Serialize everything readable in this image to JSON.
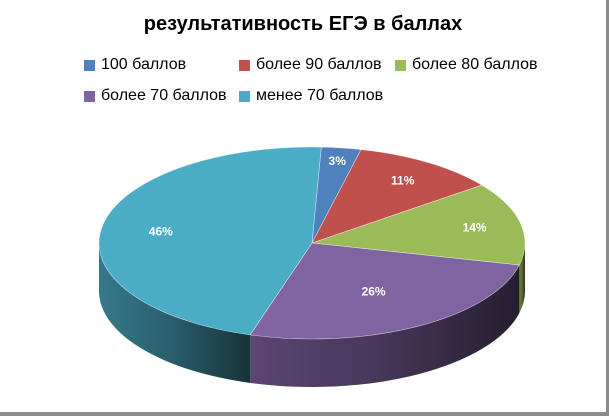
{
  "chart_data": {
    "type": "pie",
    "title": "результативность ЕГЭ в баллах",
    "legend_position": "top",
    "categories": [
      "100 баллов",
      "более 90 баллов",
      "более 80 баллов",
      "более 70 баллов",
      "менее 70 баллов"
    ],
    "values": [
      3,
      11,
      14,
      26,
      46
    ],
    "value_labels": [
      "3%",
      "11%",
      "14%",
      "26%",
      "46%"
    ],
    "colors": [
      "#4f81bd",
      "#c0504d",
      "#9bbb59",
      "#8064a2",
      "#4bacc6"
    ],
    "style": "3d"
  }
}
